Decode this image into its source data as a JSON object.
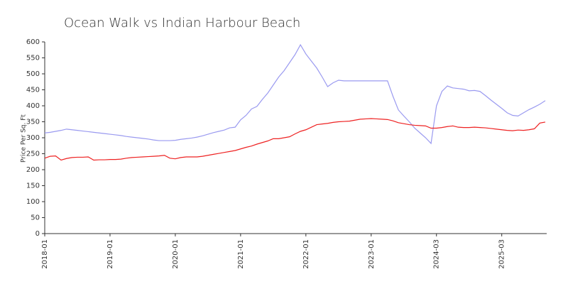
{
  "chart_data": {
    "type": "line",
    "title": "Ocean Walk vs Indian Harbour Beach",
    "y_label": "Price Per Sq. Ft",
    "categories": [
      "2018-01",
      null,
      null,
      null,
      null,
      null,
      null,
      null,
      null,
      null,
      null,
      null,
      "2019-01",
      null,
      null,
      null,
      null,
      null,
      null,
      null,
      null,
      null,
      null,
      null,
      "2020-01",
      null,
      null,
      null,
      null,
      null,
      null,
      null,
      null,
      null,
      null,
      null,
      "2021-01",
      null,
      null,
      null,
      null,
      null,
      null,
      null,
      null,
      null,
      null,
      null,
      "2022-01",
      null,
      null,
      null,
      null,
      null,
      null,
      null,
      null,
      null,
      null,
      null,
      "2023-01",
      null,
      null,
      null,
      null,
      null,
      null,
      null,
      null,
      null,
      null,
      null,
      "2024-03",
      null,
      null,
      null,
      null,
      null,
      null,
      null,
      null,
      null,
      null,
      null,
      "2025-03",
      null,
      null,
      null,
      null,
      null,
      null,
      null,
      null
    ],
    "series": [
      {
        "color": "#9a9af0",
        "values": [
          315,
          317,
          320,
          323,
          327,
          325,
          323,
          321,
          319,
          317,
          315,
          313,
          311,
          309,
          307,
          304,
          302,
          300,
          298,
          296,
          293,
          291,
          291,
          291,
          292,
          295,
          297,
          299,
          302,
          306,
          311,
          316,
          320,
          324,
          331,
          333,
          356,
          370,
          390,
          398,
          420,
          440,
          465,
          490,
          510,
          535,
          560,
          591,
          562,
          540,
          518,
          490,
          460,
          472,
          480,
          478,
          478,
          478,
          478,
          478,
          478,
          478,
          478,
          478,
          430,
          387,
          368,
          350,
          330,
          315,
          300,
          282,
          400,
          445,
          462,
          456,
          454,
          452,
          447,
          448,
          445,
          432,
          418,
          405,
          392,
          378,
          370,
          368,
          378,
          388,
          396,
          405,
          416
        ]
      },
      {
        "color": "#ee2222",
        "values": [
          236,
          242,
          243,
          230,
          235,
          238,
          239,
          239,
          240,
          230,
          231,
          231,
          232,
          232,
          233,
          236,
          238,
          239,
          240,
          241,
          242,
          243,
          245,
          236,
          234,
          238,
          240,
          240,
          240,
          242,
          245,
          248,
          251,
          254,
          257,
          260,
          265,
          270,
          274,
          280,
          285,
          290,
          297,
          297,
          300,
          303,
          312,
          320,
          325,
          333,
          341,
          343,
          345,
          348,
          350,
          351,
          352,
          355,
          358,
          359,
          360,
          359,
          358,
          357,
          353,
          347,
          344,
          341,
          339,
          338,
          337,
          330,
          330,
          332,
          335,
          337,
          333,
          332,
          332,
          333,
          332,
          331,
          329,
          327,
          325,
          323,
          322,
          324,
          323,
          325,
          328,
          346,
          349
        ]
      }
    ],
    "ylim": [
      0,
      600
    ],
    "yticks": [
      0,
      50,
      100,
      150,
      200,
      250,
      300,
      350,
      400,
      450,
      500,
      550,
      600
    ]
  }
}
